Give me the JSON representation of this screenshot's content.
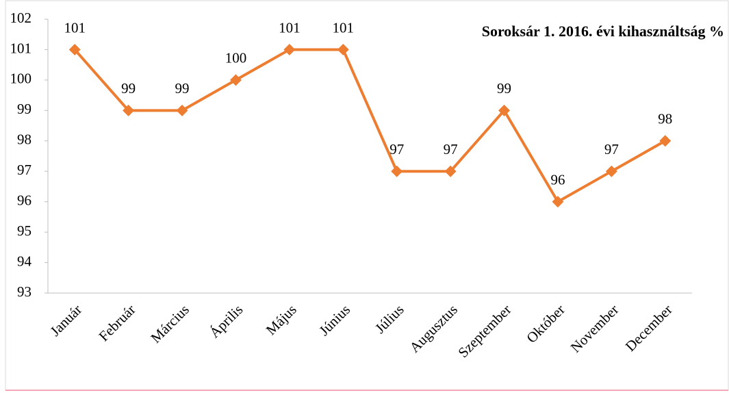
{
  "chart_data": {
    "type": "line",
    "title": "Soroksár 1. 2016. évi kihasználtság %",
    "categories": [
      "Január",
      "Február",
      "Március",
      "Április",
      "Május",
      "Június",
      "Július",
      "Augusztus",
      "Szeptember",
      "Október",
      "November",
      "December"
    ],
    "series": [
      {
        "name": "Soroksár 1. 2016. évi kihasználtság %",
        "color": "#ed7d31",
        "values": [
          101,
          99,
          99,
          100,
          101,
          101,
          97,
          97,
          99,
          96,
          97,
          98
        ]
      }
    ],
    "ylim": [
      93,
      102
    ],
    "yticks": [
      93,
      94,
      95,
      96,
      97,
      98,
      99,
      100,
      101,
      102
    ],
    "grid": false
  }
}
